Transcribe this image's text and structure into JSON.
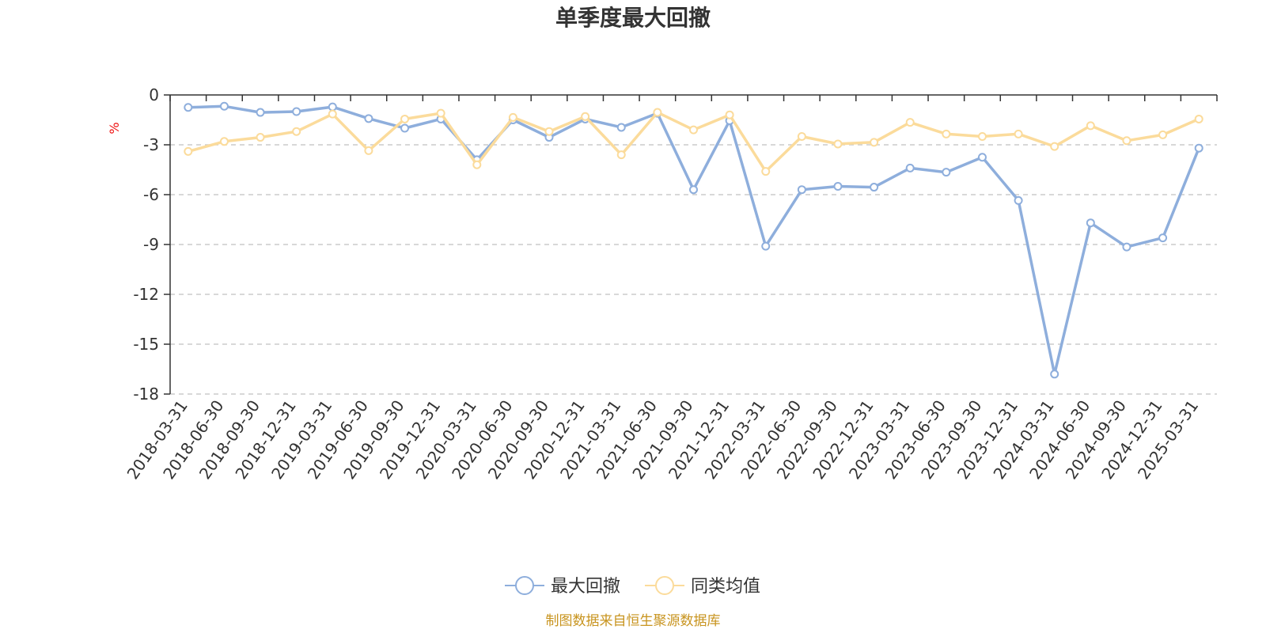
{
  "colors": {
    "series1": "#8eaedc",
    "series2": "#fbdb9b",
    "unit": "#ee1111",
    "source": "#c8941f"
  },
  "chart_data": {
    "type": "line",
    "title": "单季度最大回撤",
    "ylabel": "%",
    "ylim": [
      -18,
      0
    ],
    "yticks": [
      0,
      -3,
      -6,
      -9,
      -12,
      -15,
      -18
    ],
    "grid": "horizontal-dashed",
    "legend_position": "bottom-center",
    "source_note": "制图数据来自恒生聚源数据库",
    "categories": [
      "2018-03-31",
      "2018-06-30",
      "2018-09-30",
      "2018-12-31",
      "2019-03-31",
      "2019-06-30",
      "2019-09-30",
      "2019-12-31",
      "2020-03-31",
      "2020-06-30",
      "2020-09-30",
      "2020-12-31",
      "2021-03-31",
      "2021-06-30",
      "2021-09-30",
      "2021-12-31",
      "2022-03-31",
      "2022-06-30",
      "2022-09-30",
      "2022-12-31",
      "2023-03-31",
      "2023-06-30",
      "2023-09-30",
      "2023-12-31",
      "2024-03-31",
      "2024-06-30",
      "2024-09-30",
      "2024-12-31",
      "2025-03-31"
    ],
    "series": [
      {
        "name": "最大回撤",
        "values": [
          -0.75,
          -0.68,
          -1.05,
          -1.0,
          -0.72,
          -1.42,
          -2.0,
          -1.45,
          -3.9,
          -1.5,
          -2.55,
          -1.45,
          -1.95,
          -1.1,
          -5.7,
          -1.55,
          -9.1,
          -5.7,
          -5.5,
          -5.55,
          -4.4,
          -4.65,
          -3.75,
          -6.35,
          -16.8,
          -7.7,
          -9.15,
          -8.6,
          -3.2
        ]
      },
      {
        "name": "同类均值",
        "values": [
          -3.4,
          -2.8,
          -2.55,
          -2.2,
          -1.15,
          -3.35,
          -1.45,
          -1.1,
          -4.2,
          -1.35,
          -2.2,
          -1.3,
          -3.6,
          -1.05,
          -2.1,
          -1.2,
          -4.6,
          -2.5,
          -2.95,
          -2.85,
          -1.65,
          -2.35,
          -2.5,
          -2.35,
          -3.1,
          -1.85,
          -2.75,
          -2.4,
          -1.45
        ]
      }
    ]
  }
}
